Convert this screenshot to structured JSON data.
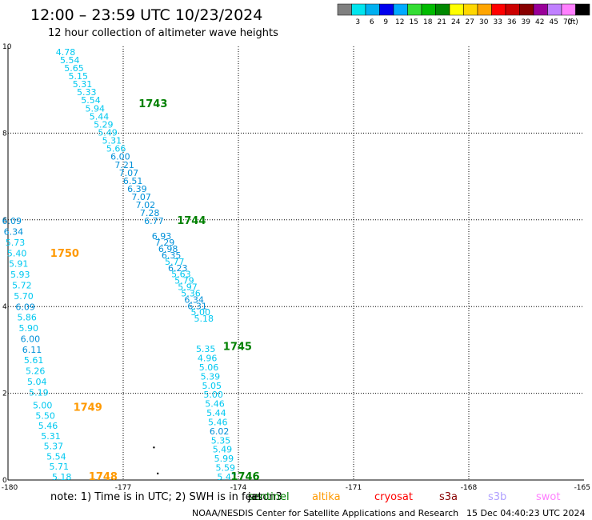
{
  "header": {
    "title": "12:00 – 23:59 UTC 10/23/2024",
    "subtitle": "12 hour collection of altimeter wave heights"
  },
  "legend": {
    "unit": "(ft)",
    "bins": [
      {
        "color": "#808080",
        "label": ""
      },
      {
        "color": "#00e5ee",
        "label": "3"
      },
      {
        "color": "#00b0f0",
        "label": "6"
      },
      {
        "color": "#0000ee",
        "label": "9"
      },
      {
        "color": "#00aaff",
        "label": "12"
      },
      {
        "color": "#33dd33",
        "label": "15"
      },
      {
        "color": "#00bb00",
        "label": "18"
      },
      {
        "color": "#008800",
        "label": "21"
      },
      {
        "color": "#ffff00",
        "label": "24"
      },
      {
        "color": "#ffd700",
        "label": "27"
      },
      {
        "color": "#ffa500",
        "label": "30"
      },
      {
        "color": "#ff0000",
        "label": "33"
      },
      {
        "color": "#cc0000",
        "label": "36"
      },
      {
        "color": "#880000",
        "label": "39"
      },
      {
        "color": "#990099",
        "label": "42"
      },
      {
        "color": "#c080ff",
        "label": "45"
      },
      {
        "color": "#ff80ff",
        "label": "70"
      },
      {
        "color": "#000000",
        "label": ""
      }
    ]
  },
  "chart_data": {
    "type": "scatter",
    "title": "12:00 – 23:59 UTC 10/23/2024",
    "subtitle": "12 hour collection of altimeter wave heights",
    "xlim": [
      -180,
      -165
    ],
    "ylim": [
      0,
      10
    ],
    "grid": true,
    "x_ticks": [
      "-180",
      "-177",
      "-174",
      "-171",
      "-168",
      "-165"
    ],
    "y_ticks": [
      "0",
      "2",
      "4",
      "6",
      "8",
      "10"
    ],
    "color_normal": "#00c8f0",
    "color_alt": "#0090d8",
    "tracks": [
      {
        "time_label": "1743",
        "time_color": "#008000",
        "label_pos": [
          -176.6,
          8.6
        ],
        "x0": -178.5,
        "y0": 9.8,
        "x1": -176.2,
        "y1": 5.9,
        "values": [
          "4.78",
          "5.54",
          "5.65",
          "5.15",
          "5.31",
          "5.33",
          "5.54",
          "5.94",
          "5.44",
          "5.29",
          "5.49",
          "5.31",
          "5.66",
          "6.00",
          "7.21",
          "7.07",
          "6.51",
          "6.39",
          "7.07",
          "7.02",
          "7.28",
          "6.77"
        ]
      },
      {
        "time_label": "1744",
        "time_color": "#008000",
        "label_pos": [
          -175.6,
          5.9
        ],
        "x0": -176.0,
        "y0": 5.55,
        "x1": -174.9,
        "y1": 3.65,
        "values": [
          "6.93",
          "7.29",
          "6.98",
          "6.35",
          "5.77",
          "6.23",
          "5.63",
          "5.79",
          "5.97",
          "5.36",
          "6.34",
          "6.31",
          "5.00",
          "5.18"
        ]
      },
      {
        "time_label": "1745",
        "time_color": "#008000",
        "label_pos": [
          -174.4,
          3.0
        ],
        "x0": -174.85,
        "y0": 2.95,
        "x1": -174.3,
        "y1": 0.0,
        "values": [
          "5.35",
          "4.96",
          "5.06",
          "5.39",
          "5.05",
          "5.00",
          "5.46",
          "5.44",
          "5.46",
          "6.02",
          "5.35",
          "5.49",
          "5.99",
          "5.59",
          "5.47"
        ]
      },
      {
        "time_label": "1750",
        "time_color": "#ff9900",
        "label_pos": [
          -178.9,
          5.15
        ],
        "x0": -179.9,
        "y0": 5.9,
        "x1": -179.2,
        "y1": 1.95,
        "values": [
          "6.09",
          "6.34",
          "5.73",
          "5.40",
          "5.91",
          "5.93",
          "5.72",
          "5.70",
          "6.09",
          "5.86",
          "5.90",
          "6.00",
          "6.11",
          "5.61",
          "5.26",
          "5.04",
          "5.19"
        ]
      },
      {
        "time_label": "1749",
        "time_color": "#ff9900",
        "label_pos": [
          -178.3,
          1.6
        ],
        "x0": -179.1,
        "y0": 1.65,
        "x1": -178.6,
        "y1": 0.0,
        "values": [
          "5.00",
          "5.50",
          "5.46",
          "5.31",
          "5.37",
          "5.54",
          "5.71",
          "5.18"
        ]
      },
      {
        "time_label": "1748",
        "time_color": "#ff9900",
        "label_pos": [
          -177.9,
          0.0
        ],
        "x0": null,
        "y0": null,
        "x1": null,
        "y1": null,
        "values": []
      },
      {
        "time_label": "1746",
        "time_color": "#008000",
        "label_pos": [
          -174.2,
          0.0
        ],
        "x0": null,
        "y0": null,
        "x1": null,
        "y1": null,
        "values": []
      }
    ],
    "dots": [
      [
        -176.2,
        0.75
      ],
      [
        -176.1,
        0.15
      ]
    ]
  },
  "satellites": [
    {
      "name": "jason3",
      "color": "#000000"
    },
    {
      "name": "sentinel",
      "color": "#008000"
    },
    {
      "name": "altika",
      "color": "#ff9900"
    },
    {
      "name": "cryosat",
      "color": "#ff0000"
    },
    {
      "name": "s3a",
      "color": "#880000"
    },
    {
      "name": "s3b",
      "color": "#b0a0ff"
    },
    {
      "name": "swot",
      "color": "#ff80ff"
    }
  ],
  "footer": {
    "note": "note:  1) Time is in UTC; 2) SWH is in feet",
    "credit": "NOAA/NESDIS Center for Satellite Applications and Research",
    "timestamp": "15 Dec 04:40:23 UTC 2024"
  }
}
